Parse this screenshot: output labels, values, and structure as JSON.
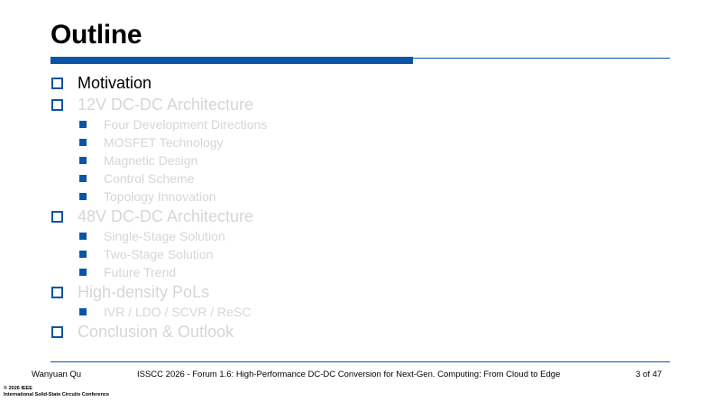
{
  "slide": {
    "title": "Outline",
    "items": [
      {
        "label": "Motivation",
        "state": "active",
        "children": []
      },
      {
        "label": "12V DC-DC Architecture",
        "state": "dim",
        "children": [
          "Four Development Directions",
          "MOSFET Technology",
          "Magnetic Design",
          "Control Scheme",
          "Topology Innovation"
        ]
      },
      {
        "label": "48V DC-DC Architecture",
        "state": "dim",
        "children": [
          "Single-Stage Solution",
          "Two-Stage Solution",
          "Future Trend"
        ]
      },
      {
        "label": "High-density PoLs",
        "state": "dim",
        "children": [
          "IVR / LDO / SCVR / ReSC"
        ]
      },
      {
        "label": "Conclusion & Outlook",
        "state": "dim",
        "children": []
      }
    ]
  },
  "footer": {
    "author": "Wanyuan Qu",
    "conference": "ISSCC 2026 - Forum 1.6: High-Performance DC-DC Conversion for Next-Gen. Computing: From Cloud to Edge",
    "page": "3 of 47",
    "copyright_line1": "© 2026 IEEE",
    "copyright_line2": "International Solid-State Circuits Conference"
  },
  "colors": {
    "accent": "#0a55a6",
    "active_text": "#000000",
    "dim_text": "#d6d6d6"
  }
}
